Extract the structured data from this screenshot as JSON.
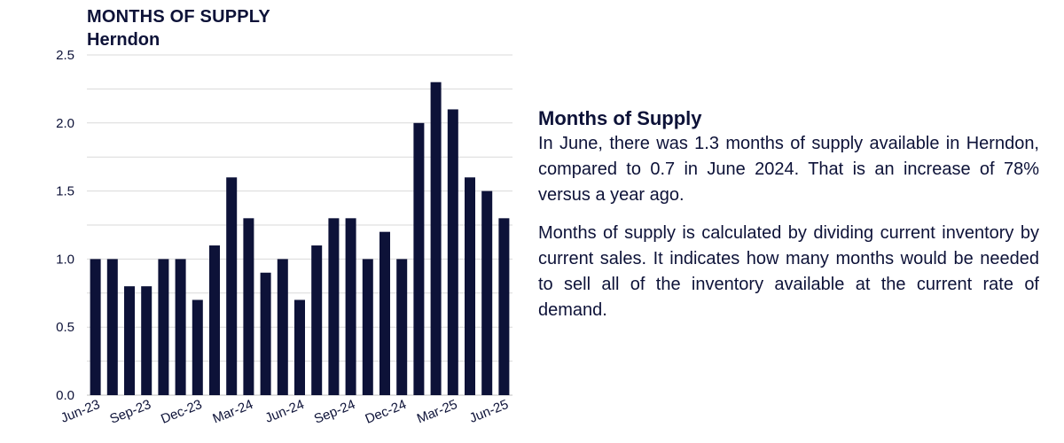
{
  "chart_data": {
    "type": "bar",
    "title": "MONTHS OF SUPPLY",
    "subtitle": "Herndon",
    "categories": [
      "Jun-23",
      "Jul-23",
      "Aug-23",
      "Sep-23",
      "Oct-23",
      "Nov-23",
      "Dec-23",
      "Jan-24",
      "Feb-24",
      "Mar-24",
      "Apr-24",
      "May-24",
      "Jun-24",
      "Jul-24",
      "Aug-24",
      "Sep-24",
      "Oct-24",
      "Nov-24",
      "Dec-24",
      "Jan-25",
      "Feb-25",
      "Mar-25",
      "Apr-25",
      "May-25",
      "Jun-25"
    ],
    "tick_labels": [
      "Jun-23",
      "Sep-23",
      "Dec-23",
      "Mar-24",
      "Jun-24",
      "Sep-24",
      "Dec-24",
      "Mar-25",
      "Jun-25"
    ],
    "values": [
      1.0,
      1.0,
      0.8,
      0.8,
      1.0,
      1.0,
      0.7,
      1.1,
      1.6,
      1.3,
      0.9,
      1.0,
      0.7,
      1.1,
      1.3,
      1.3,
      1.0,
      1.2,
      1.0,
      2.0,
      2.3,
      2.1,
      1.6,
      1.5,
      1.3
    ],
    "ylim": [
      0,
      2.5
    ],
    "yticks": [
      "0.0",
      "0.5",
      "1.0",
      "1.5",
      "2.0",
      "2.5"
    ],
    "grid": true,
    "bar_color": "#0d1238",
    "grid_color": "#d9d9d9"
  },
  "panel": {
    "heading": "Months of Supply",
    "paragraph1": "In June, there was 1.3 months of supply available in Herndon, compared to 0.7 in June 2024. That is an increase of 78% versus a year ago.",
    "paragraph2": "Months of supply is calculated by dividing current inventory by current sales. It indicates how many months would be needed to sell all of the inventory available at the current rate of demand."
  }
}
